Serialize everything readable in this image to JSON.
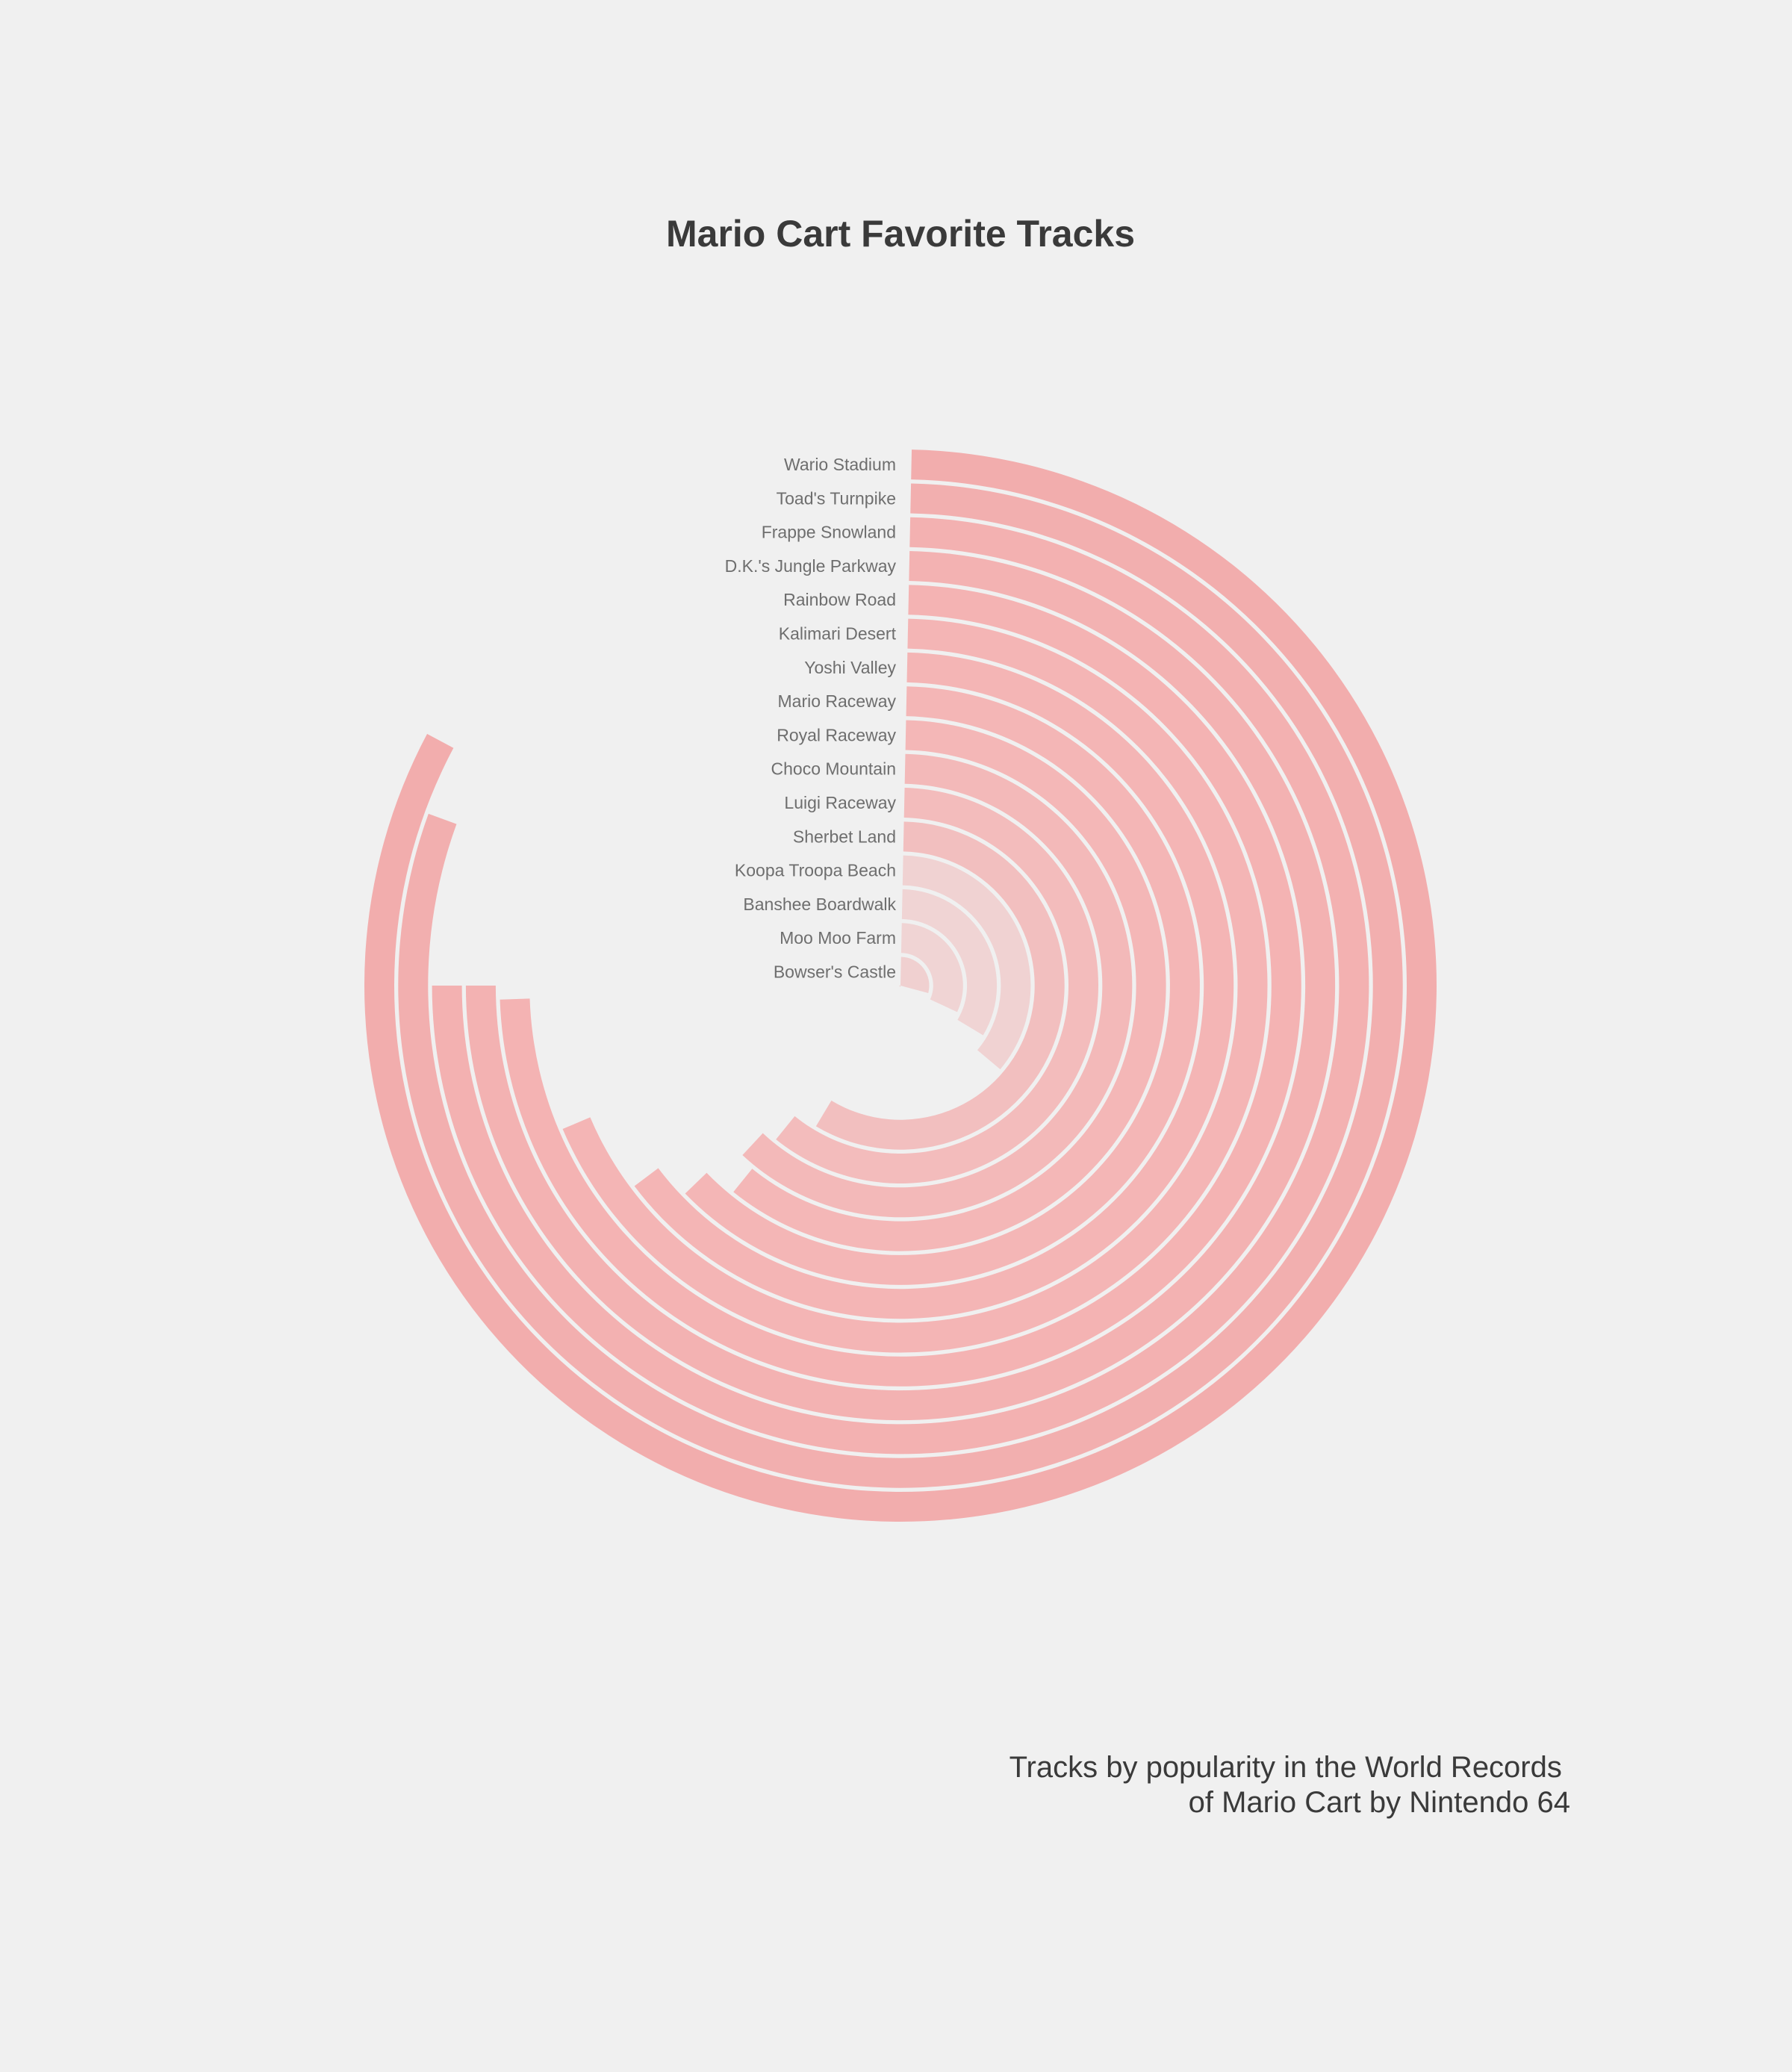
{
  "chart_data": {
    "type": "radial_bar",
    "title": "Mario Cart Favorite Tracks",
    "caption_lines": [
      "Tracks by popularity in the World Records",
      "of Mario Cart by Nintendo 64"
    ],
    "value_max": 360,
    "series": [
      {
        "track": "Wario Stadium",
        "value": 298,
        "color": "#f2adad"
      },
      {
        "track": "Toad's Turnpike",
        "value": 290,
        "color": "#f2afaf"
      },
      {
        "track": "Frappe Snowland",
        "value": 270,
        "color": "#f3b1b1"
      },
      {
        "track": "D.K.'s Jungle Parkway",
        "value": 270,
        "color": "#f3b2b2"
      },
      {
        "track": "Rainbow Road",
        "value": 268,
        "color": "#f4b3b3"
      },
      {
        "track": "Kalimari Desert",
        "value": 247,
        "color": "#f4b5b5"
      },
      {
        "track": "Yoshi Valley",
        "value": 233,
        "color": "#f4b5b5"
      },
      {
        "track": "Mario Raceway",
        "value": 226,
        "color": "#f4b6b6"
      },
      {
        "track": "Royal Raceway",
        "value": 219,
        "color": "#f4b7b7"
      },
      {
        "track": "Choco Mountain",
        "value": 223,
        "color": "#f3b9b9"
      },
      {
        "track": "Luigi Raceway",
        "value": 219,
        "color": "#f3bcbc"
      },
      {
        "track": "Sherbet Land",
        "value": 211,
        "color": "#f2bfbf"
      },
      {
        "track": "Koopa Troopa Beach",
        "value": 130,
        "color": "#f0d2d2"
      },
      {
        "track": "Banshee Boardwalk",
        "value": 121,
        "color": "#f0d4d4"
      },
      {
        "track": "Moo Moo Farm",
        "value": 115,
        "color": "#f0d4d4"
      },
      {
        "track": "Bowser's Castle",
        "value": 105,
        "color": "#f0d0d0"
      }
    ]
  }
}
